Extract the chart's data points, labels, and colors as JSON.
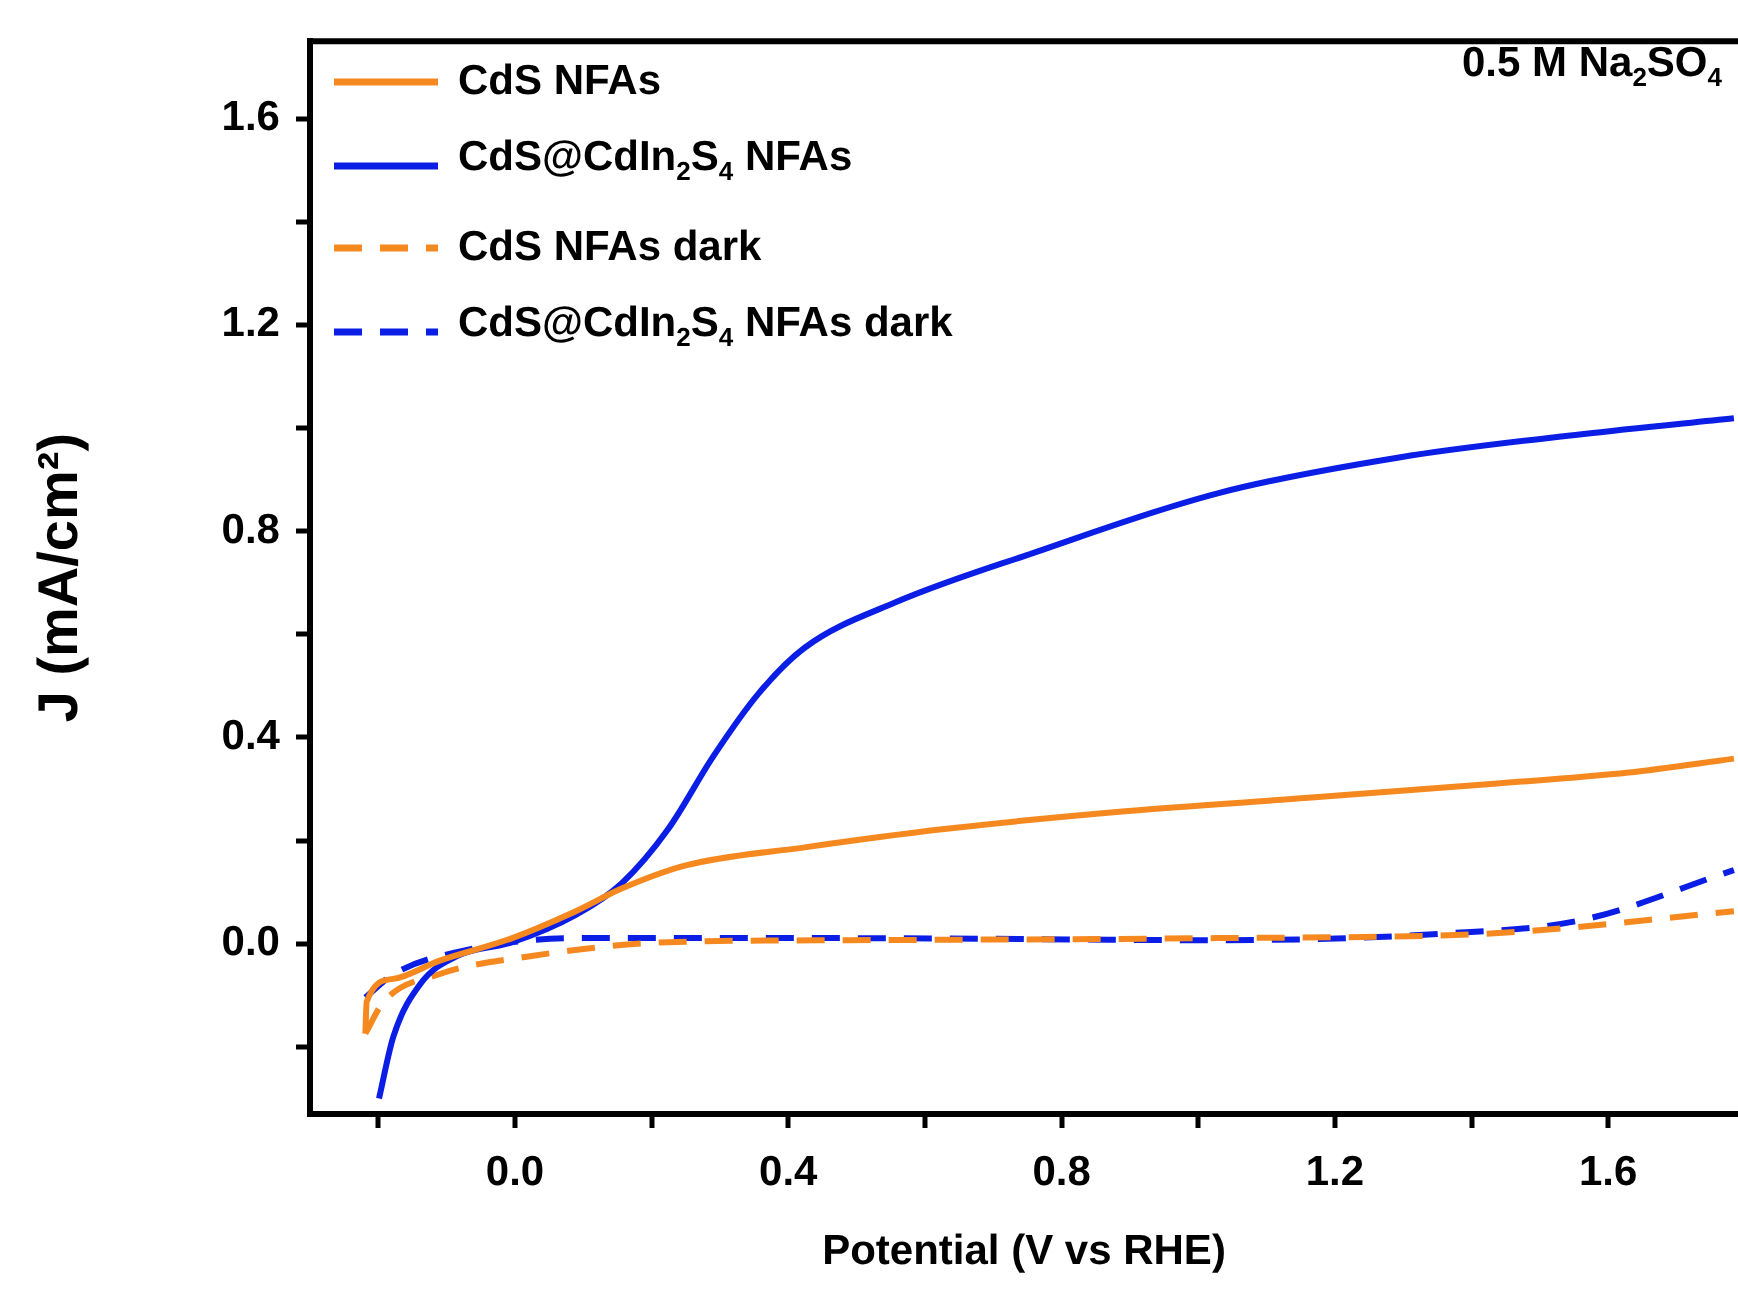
{
  "chart_data": {
    "type": "line",
    "xlabel": "Potential (V vs RHE)",
    "ylabel": "J (mA/cm²)",
    "annotations": [
      "0.5 M Na$_{2}$SO$_{4}$"
    ],
    "xlim": [
      -0.3,
      1.79
    ],
    "ylim": [
      -0.33,
      1.75
    ],
    "xticks": [
      {
        "value": -0.2,
        "label": null
      },
      {
        "value": 0,
        "label": "0.0"
      },
      {
        "value": 0.2,
        "label": null
      },
      0.4,
      {
        "value": 0.6,
        "label": null
      },
      0.8,
      {
        "value": 1.0,
        "label": null
      },
      1.2,
      {
        "value": 1.4,
        "label": null
      },
      1.6
    ],
    "yticks": [
      {
        "value": -0.2,
        "label": null
      },
      {
        "value": 0,
        "label": "0.0"
      },
      {
        "value": 0.2,
        "label": null
      },
      0.4,
      {
        "value": 0.6,
        "label": null
      },
      0.8,
      {
        "value": 1.0,
        "label": null
      },
      1.2,
      {
        "value": 1.4,
        "label": null
      },
      1.6
    ],
    "grid": false,
    "legend": "top left",
    "marker": "none",
    "series": [
      {
        "name": "CdS NFAs",
        "color": "#f5891f",
        "line_style": "solid",
        "x": [
          -0.219,
          -0.217,
          -0.178,
          -0.111,
          -0.004,
          0.089,
          0.156,
          0.25,
          0.424,
          0.625,
          0.893,
          1.161,
          1.428,
          1.63,
          1.784
        ],
        "values": [
          -0.174,
          -0.112,
          -0.068,
          -0.033,
          0.011,
          0.063,
          0.107,
          0.152,
          0.187,
          0.222,
          0.257,
          0.283,
          0.31,
          0.332,
          0.359
        ]
      },
      {
        "name": "CdS@CdIn$_{2}$S$_{4}$ NFAs",
        "color": "#0a1ee6",
        "line_style": "solid",
        "x": [
          -0.199,
          -0.178,
          -0.138,
          -0.085,
          -0.004,
          0.089,
          0.156,
          0.224,
          0.29,
          0.357,
          0.424,
          0.557,
          0.759,
          1.027,
          1.294,
          1.561,
          1.784
        ],
        "values": [
          -0.3,
          -0.18,
          -0.077,
          -0.024,
          0.003,
          0.056,
          0.117,
          0.222,
          0.363,
          0.486,
          0.574,
          0.662,
          0.758,
          0.873,
          0.943,
          0.988,
          1.019
        ]
      },
      {
        "name": "CdS NFAs dark",
        "color": "#f5891f",
        "line_style": "dashed",
        "x": [
          -0.219,
          -0.192,
          -0.111,
          0.022,
          0.224,
          0.49,
          1.027,
          1.428,
          1.784
        ],
        "values": [
          -0.174,
          -0.112,
          -0.059,
          -0.024,
          0.003,
          0.007,
          0.011,
          0.02,
          0.063
        ]
      },
      {
        "name": "CdS@CdIn$_{2}$S$_{4}$ NFAs dark",
        "color": "#0a1ee6",
        "line_style": "dashed",
        "x": [
          -0.219,
          -0.178,
          -0.085,
          0.089,
          0.49,
          1.027,
          1.361,
          1.561,
          1.784
        ],
        "values": [
          -0.104,
          -0.059,
          -0.016,
          0.011,
          0.011,
          0.007,
          0.02,
          0.046,
          0.143
        ]
      }
    ]
  }
}
